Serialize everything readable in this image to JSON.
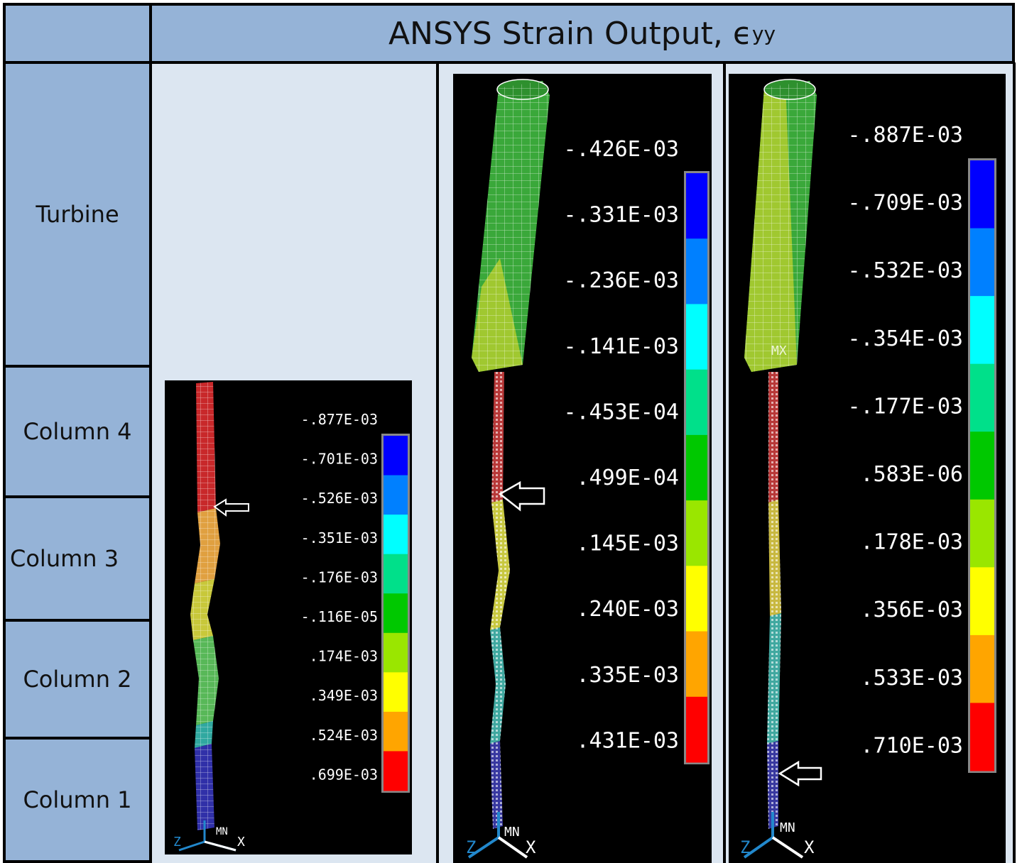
{
  "title": {
    "main": "ANSYS Strain Output, ϵ",
    "sub": "yy"
  },
  "row_labels": [
    "Turbine",
    "Column 4",
    "Column 3",
    "Column 2",
    "Column 1"
  ],
  "panels": [
    {
      "legend": [
        "-.877E-03",
        "-.701E-03",
        "-.526E-03",
        "-.351E-03",
        "-.176E-03",
        "-.116E-05",
        ".174E-03",
        ".349E-03",
        ".524E-03",
        ".699E-03"
      ],
      "triad": {
        "z": "Z",
        "x": "X",
        "mn": "MN"
      }
    },
    {
      "legend": [
        "-.426E-03",
        "-.331E-03",
        "-.236E-03",
        "-.141E-03",
        "-.453E-04",
        ".499E-04",
        ".145E-03",
        ".240E-03",
        ".335E-03",
        ".431E-03"
      ],
      "triad": {
        "z": "Z",
        "x": "X",
        "mn": "MN"
      }
    },
    {
      "legend": [
        "-.887E-03",
        "-.709E-03",
        "-.532E-03",
        "-.354E-03",
        "-.177E-03",
        ".583E-06",
        ".178E-03",
        ".356E-03",
        ".533E-03",
        ".710E-03"
      ],
      "triad": {
        "z": "Z",
        "x": "X",
        "mn": "MN",
        "mx": "MX"
      }
    }
  ],
  "contour_colors": [
    "#0000ff",
    "#0080ff",
    "#00ffff",
    "#00e08a",
    "#00c800",
    "#9ae600",
    "#ffff00",
    "#ffa500",
    "#ff0000"
  ]
}
